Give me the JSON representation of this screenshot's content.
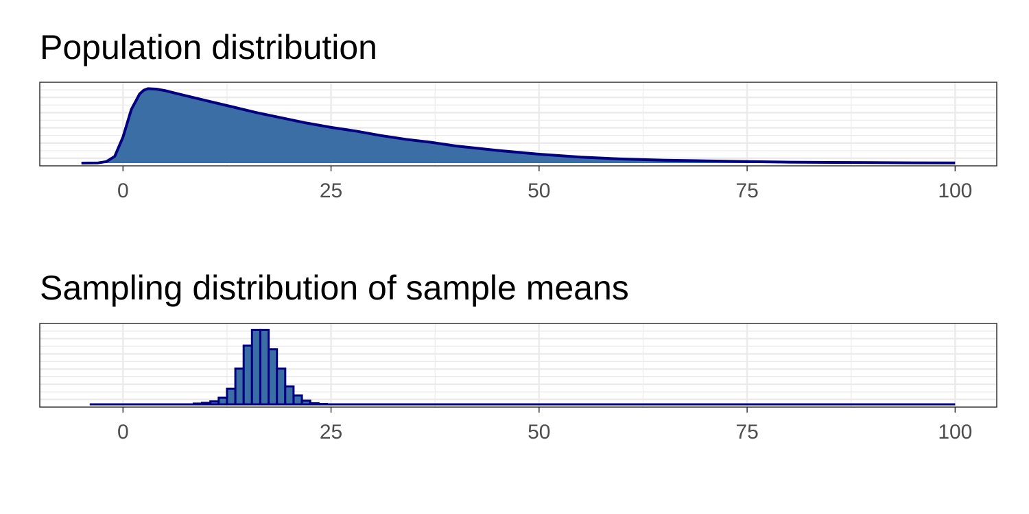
{
  "chart_data": [
    {
      "type": "area",
      "title": "Population distribution",
      "xlabel": "",
      "ylabel": "",
      "xlim": [
        -10,
        105
      ],
      "ylim": [
        0,
        1.05
      ],
      "grid": true,
      "x_ticks": [
        0,
        25,
        50,
        75,
        100
      ],
      "x_tick_labels": [
        "0",
        "25",
        "50",
        "75",
        "100"
      ],
      "fill_color": "#3a6ea5",
      "line_color": "#000080",
      "points": [
        {
          "x": -5,
          "y": 0.0
        },
        {
          "x": -3,
          "y": 0.003
        },
        {
          "x": -2,
          "y": 0.02
        },
        {
          "x": -1,
          "y": 0.09
        },
        {
          "x": 0,
          "y": 0.35
        },
        {
          "x": 1,
          "y": 0.72
        },
        {
          "x": 2,
          "y": 0.93
        },
        {
          "x": 2.5,
          "y": 0.98
        },
        {
          "x": 3,
          "y": 1.0
        },
        {
          "x": 4,
          "y": 0.995
        },
        {
          "x": 5,
          "y": 0.975
        },
        {
          "x": 7,
          "y": 0.92
        },
        {
          "x": 10,
          "y": 0.84
        },
        {
          "x": 13,
          "y": 0.76
        },
        {
          "x": 16,
          "y": 0.68
        },
        {
          "x": 19,
          "y": 0.61
        },
        {
          "x": 22,
          "y": 0.54
        },
        {
          "x": 25,
          "y": 0.48
        },
        {
          "x": 28,
          "y": 0.43
        },
        {
          "x": 31,
          "y": 0.37
        },
        {
          "x": 34,
          "y": 0.32
        },
        {
          "x": 37,
          "y": 0.28
        },
        {
          "x": 40,
          "y": 0.23
        },
        {
          "x": 45,
          "y": 0.17
        },
        {
          "x": 50,
          "y": 0.12
        },
        {
          "x": 55,
          "y": 0.08
        },
        {
          "x": 60,
          "y": 0.055
        },
        {
          "x": 65,
          "y": 0.04
        },
        {
          "x": 70,
          "y": 0.03
        },
        {
          "x": 75,
          "y": 0.02
        },
        {
          "x": 80,
          "y": 0.013
        },
        {
          "x": 85,
          "y": 0.009
        },
        {
          "x": 90,
          "y": 0.006
        },
        {
          "x": 95,
          "y": 0.004
        },
        {
          "x": 100,
          "y": 0.003
        }
      ]
    },
    {
      "type": "bar",
      "title": "Sampling distribution of sample means",
      "xlabel": "",
      "ylabel": "",
      "xlim": [
        -10,
        105
      ],
      "ylim": [
        0,
        1.05
      ],
      "grid": true,
      "x_ticks": [
        0,
        25,
        50,
        75,
        100
      ],
      "x_tick_labels": [
        "0",
        "25",
        "50",
        "75",
        "100"
      ],
      "fill_color": "#3a6ea5",
      "line_color": "#000080",
      "bin_width": 1,
      "bins": [
        {
          "x": 9,
          "y": 0.01
        },
        {
          "x": 10,
          "y": 0.02
        },
        {
          "x": 11,
          "y": 0.04
        },
        {
          "x": 12,
          "y": 0.09
        },
        {
          "x": 13,
          "y": 0.21
        },
        {
          "x": 14,
          "y": 0.48
        },
        {
          "x": 15,
          "y": 0.79
        },
        {
          "x": 16,
          "y": 1.0
        },
        {
          "x": 17,
          "y": 1.0
        },
        {
          "x": 18,
          "y": 0.74
        },
        {
          "x": 19,
          "y": 0.48
        },
        {
          "x": 20,
          "y": 0.24
        },
        {
          "x": 21,
          "y": 0.12
        },
        {
          "x": 22,
          "y": 0.05
        },
        {
          "x": 23,
          "y": 0.015
        },
        {
          "x": 24,
          "y": 0.005
        }
      ],
      "baseline_range": [
        -4,
        100
      ]
    }
  ]
}
